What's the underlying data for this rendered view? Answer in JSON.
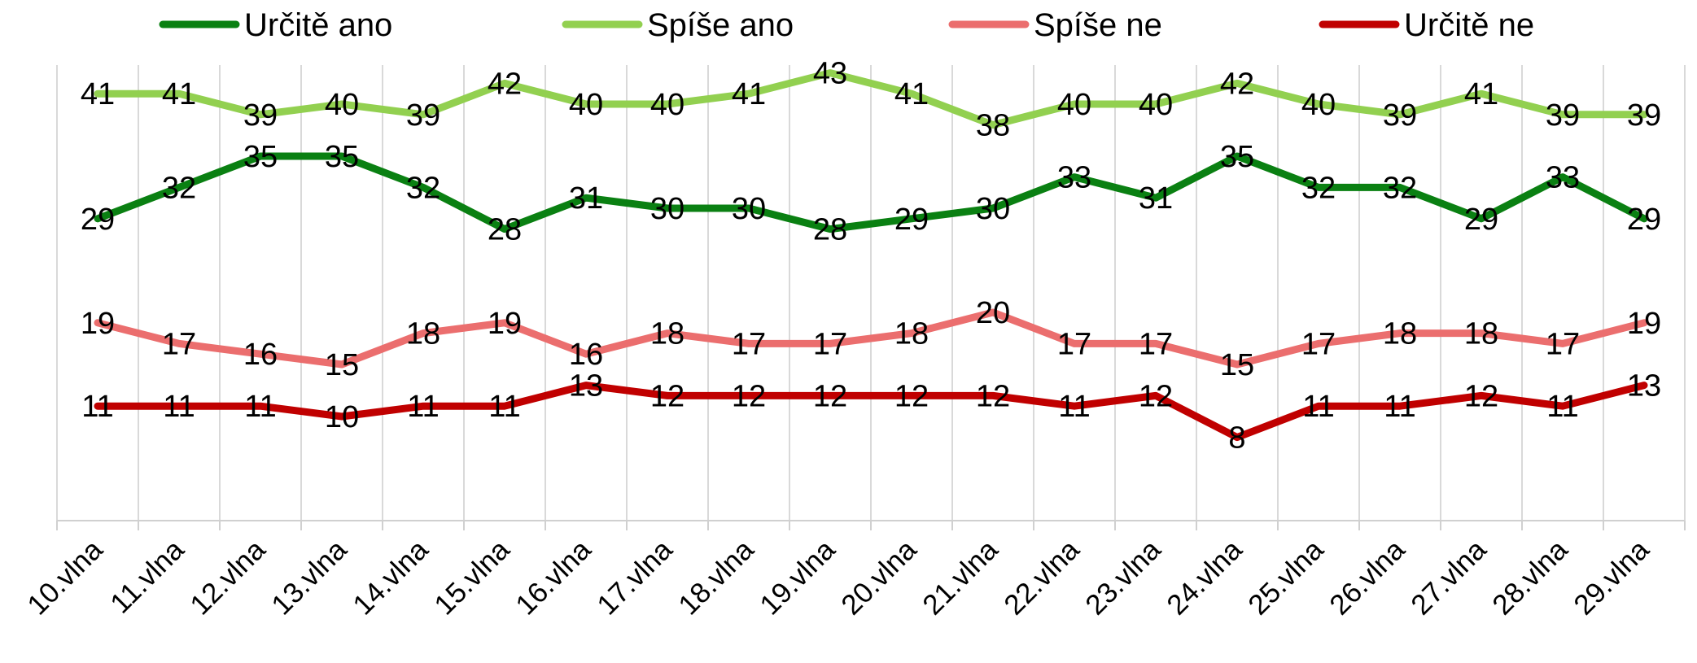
{
  "chart_data": {
    "type": "line",
    "categories": [
      "10.vlna",
      "11.vlna",
      "12.vlna",
      "13.vlna",
      "14.vlna",
      "15.vlna",
      "16.vlna",
      "17.vlna",
      "18.vlna",
      "19.vlna",
      "20.vlna",
      "21.vlna",
      "22.vlna",
      "23.vlna",
      "24.vlna",
      "25.vlna",
      "26.vlna",
      "27.vlna",
      "28.vlna",
      "29.vlna"
    ],
    "series": [
      {
        "name": "Určitě ano",
        "color": "#0a8012",
        "values": [
          29,
          32,
          35,
          35,
          32,
          28,
          31,
          30,
          30,
          28,
          29,
          30,
          33,
          31,
          35,
          32,
          32,
          29,
          33,
          29
        ]
      },
      {
        "name": "Spíše ano",
        "color": "#92d050",
        "values": [
          41,
          41,
          39,
          40,
          39,
          42,
          40,
          40,
          41,
          43,
          41,
          38,
          40,
          40,
          42,
          40,
          39,
          41,
          39,
          39
        ]
      },
      {
        "name": "Spíše ne",
        "color": "#eb6e6e",
        "values": [
          19,
          17,
          16,
          15,
          18,
          19,
          16,
          18,
          17,
          17,
          18,
          20,
          17,
          17,
          15,
          17,
          18,
          18,
          17,
          19
        ]
      },
      {
        "name": "Určitě ne",
        "color": "#c00000",
        "values": [
          11,
          11,
          11,
          10,
          11,
          11,
          13,
          12,
          12,
          12,
          12,
          12,
          11,
          12,
          8,
          11,
          11,
          12,
          11,
          13
        ]
      }
    ],
    "ylim": [
      0,
      50
    ],
    "grid": "vertical",
    "legend": "top",
    "data_labels": true
  }
}
